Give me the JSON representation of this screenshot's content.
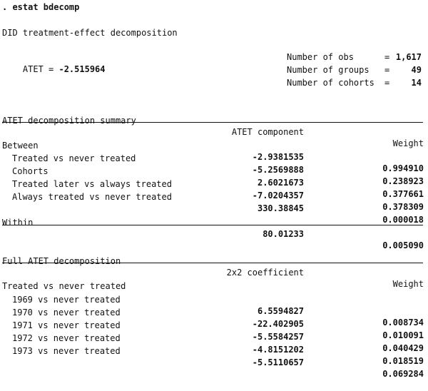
{
  "command": ". estat bdecomp",
  "title": "DID treatment-effect decomposition",
  "atet": {
    "label": "ATET = ",
    "value": "-2.515964"
  },
  "stats": [
    {
      "label": "Number of obs",
      "eq": "=",
      "value": "1,617"
    },
    {
      "label": "Number of groups",
      "eq": "=",
      "value": "49"
    },
    {
      "label": "Number of cohorts",
      "eq": "=",
      "value": "14"
    }
  ],
  "summary": {
    "header": {
      "label": "ATET decomposition summary",
      "col1": "ATET component",
      "col2": "Weight"
    },
    "rows": [
      {
        "label": "Between",
        "value": "-2.9381535",
        "weight": "0.994910"
      },
      {
        "label": "Treated vs never treated",
        "value": "-5.2569888",
        "weight": "0.238923"
      },
      {
        "label": "Cohorts",
        "value": "2.6021673",
        "weight": "0.377661"
      },
      {
        "label": "Treated later vs always treated",
        "value": "-7.0204357",
        "weight": "0.378309"
      },
      {
        "label": "Always treated vs never treated",
        "value": "330.38845",
        "weight": "0.000018"
      },
      {
        "label": "Within",
        "value": "80.01233",
        "weight": "0.005090"
      }
    ]
  },
  "full": {
    "header": {
      "label": "Full ATET decomposition",
      "col1": "2x2 coefficient",
      "col2": "Weight"
    },
    "group_label": "Treated vs never treated",
    "rows": [
      {
        "label": "1969 vs never treated",
        "value": "6.5594827",
        "weight": "0.008734"
      },
      {
        "label": "1970 vs never treated",
        "value": "-22.402905",
        "weight": "0.010091"
      },
      {
        "label": "1971 vs never treated",
        "value": "-5.5584257",
        "weight": "0.040429"
      },
      {
        "label": "1972 vs never treated",
        "value": "-4.8151202",
        "weight": "0.018519"
      },
      {
        "label": "1973 vs never treated",
        "value": "-5.5110657",
        "weight": "0.069284"
      }
    ]
  }
}
